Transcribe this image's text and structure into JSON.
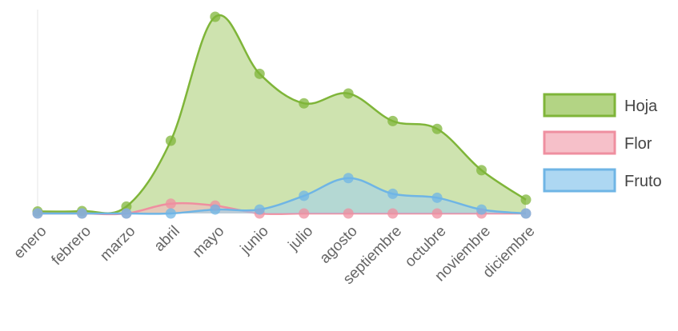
{
  "chart_data": {
    "type": "area",
    "categories": [
      "enero",
      "febrero",
      "marzo",
      "abril",
      "mayo",
      "junio",
      "julio",
      "agosto",
      "septiembre",
      "octubre",
      "noviembre",
      "diciembre"
    ],
    "series": [
      {
        "name": "Hoja",
        "values": [
          1.0,
          1.2,
          3.5,
          37,
          100,
          71,
          56,
          61,
          47,
          43,
          22,
          7
        ],
        "color": "#7fb539",
        "fill": "#a6cc6e"
      },
      {
        "name": "Flor",
        "values": [
          0,
          0,
          0,
          5,
          4,
          0,
          0,
          0,
          0,
          0,
          0,
          0
        ],
        "color": "#ef8fa0",
        "fill": "#f5b5c0"
      },
      {
        "name": "Fruto",
        "values": [
          0,
          0,
          0,
          0,
          2,
          2,
          9,
          18,
          10,
          8,
          2,
          0
        ],
        "color": "#6fb5e5",
        "fill": "#9fd0f0"
      }
    ],
    "ylim": [
      0,
      100
    ],
    "legend_position": "right",
    "grid": false
  }
}
